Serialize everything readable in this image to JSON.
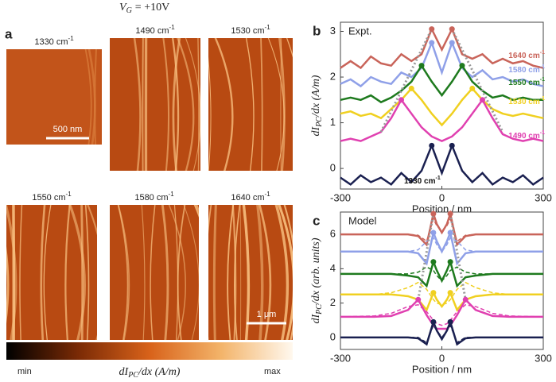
{
  "header": {
    "gate_symbol": "V",
    "gate_subscript": "G",
    "gate_value": "= +10V"
  },
  "panel_a": {
    "panel": "a",
    "images": [
      {
        "label": "1330 cm",
        "label_sup": "-1"
      },
      {
        "label": "1490 cm",
        "label_sup": "-1"
      },
      {
        "label": "1530 cm",
        "label_sup": "-1"
      },
      {
        "label": "1550 cm",
        "label_sup": "-1"
      },
      {
        "label": "1580 cm",
        "label_sup": "-1"
      },
      {
        "label": "1640 cm",
        "label_sup": "-1"
      }
    ],
    "scalebar_small": "500 nm",
    "scalebar_large": "1 μm",
    "colorbar": {
      "min": "min",
      "max": "max",
      "label": "dI",
      "label_sub": "PC",
      "label_rest": "/dx (A/m)"
    }
  },
  "chart_data": [
    {
      "type": "line",
      "panel": "b",
      "legend_text": "Expt.",
      "xlabel": "Position / nm",
      "ylabel": "dI",
      "ylabel_sub": "PC",
      "ylabel_rest": "/dx (A/m)",
      "x": [
        -300,
        -270,
        -240,
        -210,
        -180,
        -150,
        -120,
        -90,
        -60,
        -30,
        0,
        30,
        60,
        90,
        120,
        150,
        180,
        210,
        240,
        270,
        300
      ],
      "xlim": [
        -300,
        300
      ],
      "ylim": [
        -0.45,
        3.2
      ],
      "xticks": [
        -300,
        0,
        300
      ],
      "yticks": [
        0,
        1,
        2,
        3
      ],
      "series": [
        {
          "name": "1640 cm",
          "name_sup": "-1",
          "color": "#c9645a",
          "values": [
            2.2,
            2.35,
            2.2,
            2.45,
            2.3,
            2.25,
            2.5,
            2.35,
            2.5,
            3.05,
            2.6,
            3.05,
            2.5,
            2.4,
            2.5,
            2.3,
            2.4,
            2.3,
            2.35,
            2.25,
            2.2
          ],
          "markers": {
            "x": [
              -30,
              30
            ],
            "y": [
              3.05,
              3.05
            ]
          }
        },
        {
          "name": "1580 cm",
          "name_sup": "-1",
          "color": "#8fa0e8",
          "values": [
            1.85,
            1.95,
            1.8,
            2.0,
            1.9,
            1.85,
            2.1,
            2.0,
            2.2,
            2.75,
            2.1,
            2.75,
            2.2,
            2.0,
            2.15,
            1.95,
            2.0,
            1.9,
            1.95,
            1.85,
            1.8
          ],
          "markers": {
            "x": [
              -30,
              30
            ],
            "y": [
              2.75,
              2.75
            ]
          }
        },
        {
          "name": "1550 cm",
          "name_sup": "-1",
          "color": "#1e7a1e",
          "values": [
            1.5,
            1.55,
            1.5,
            1.6,
            1.45,
            1.55,
            1.7,
            1.9,
            2.25,
            1.9,
            1.6,
            1.9,
            2.25,
            1.9,
            1.7,
            1.55,
            1.6,
            1.5,
            1.55,
            1.5,
            1.5
          ],
          "markers": {
            "x": [
              -60,
              60
            ],
            "y": [
              2.25,
              2.25
            ]
          }
        },
        {
          "name": "1530 cm",
          "name_sup": "-1",
          "color": "#f0d020",
          "values": [
            1.2,
            1.25,
            1.15,
            1.2,
            1.1,
            1.3,
            1.5,
            1.75,
            1.5,
            1.2,
            0.95,
            1.2,
            1.5,
            1.75,
            1.5,
            1.3,
            1.2,
            1.15,
            1.2,
            1.15,
            1.1
          ],
          "markers": {
            "x": [
              -90,
              90
            ],
            "y": [
              1.75,
              1.75
            ]
          }
        },
        {
          "name": "1490 cm",
          "name_sup": "-1",
          "color": "#e040b0",
          "values": [
            0.6,
            0.65,
            0.6,
            0.7,
            0.8,
            1.1,
            1.5,
            1.2,
            0.9,
            0.7,
            0.6,
            0.7,
            0.9,
            1.2,
            1.5,
            1.1,
            0.75,
            0.65,
            0.6,
            0.65,
            0.6
          ],
          "markers": {
            "x": [
              -120,
              120
            ],
            "y": [
              1.5,
              1.5
            ]
          }
        },
        {
          "name": "1330 cm",
          "name_sup": "-1",
          "color": "#1a2050",
          "values": [
            -0.2,
            -0.35,
            -0.15,
            -0.3,
            -0.2,
            -0.35,
            -0.1,
            -0.3,
            -0.05,
            0.5,
            -0.1,
            0.5,
            -0.05,
            -0.3,
            -0.1,
            -0.35,
            -0.2,
            -0.3,
            -0.15,
            -0.35,
            -0.2
          ],
          "markers": {
            "x": [
              -30,
              30
            ],
            "y": [
              0.5,
              0.5
            ]
          }
        }
      ],
      "guides": [
        {
          "x": [
            -180,
            -30
          ],
          "y": [
            0.8,
            3.05
          ]
        },
        {
          "x": [
            30,
            180
          ],
          "y": [
            3.05,
            0.8
          ]
        }
      ]
    },
    {
      "type": "line",
      "panel": "c",
      "legend_text": "Model",
      "xlabel": "Position / nm",
      "ylabel": "dI",
      "ylabel_sub": "PC",
      "ylabel_rest": "/dx (arb. units)",
      "x": [
        -300,
        -200,
        -150,
        -100,
        -70,
        -45,
        -25,
        -15,
        0,
        15,
        25,
        45,
        70,
        100,
        150,
        200,
        300
      ],
      "xlim": [
        -300,
        300
      ],
      "ylim": [
        -0.7,
        7.3
      ],
      "xticks": [
        -300,
        0,
        300
      ],
      "yticks": [
        0,
        2,
        4,
        6
      ],
      "series": [
        {
          "color": "#c9645a",
          "values": [
            6,
            6,
            6,
            6,
            5.9,
            5.4,
            7.2,
            6.6,
            6.1,
            6.6,
            7.2,
            5.4,
            5.9,
            6,
            6,
            6,
            6
          ],
          "markers": {
            "x": [
              -25,
              25
            ],
            "y": [
              7.2,
              7.2
            ]
          }
        },
        {
          "color": "#c9645a",
          "dash": true,
          "values": [
            6,
            6,
            6,
            6,
            5.95,
            5.6,
            6.9,
            6.5,
            6.2,
            6.5,
            6.9,
            5.6,
            5.95,
            6,
            6,
            6,
            6
          ]
        },
        {
          "color": "#8fa0e8",
          "values": [
            5,
            5,
            5,
            5,
            4.9,
            4.3,
            6.1,
            5.6,
            5.0,
            5.6,
            6.1,
            4.3,
            4.9,
            5,
            5,
            5,
            5
          ],
          "markers": {
            "x": [
              -25,
              25
            ],
            "y": [
              6.1,
              6.1
            ]
          }
        },
        {
          "color": "#8fa0e8",
          "dash": true,
          "values": [
            5,
            5,
            5,
            5,
            5.1,
            5.6,
            5.8,
            5.4,
            5.0,
            5.4,
            5.8,
            5.6,
            5.1,
            5,
            5,
            5,
            5
          ]
        },
        {
          "color": "#1e7a1e",
          "values": [
            3.7,
            3.7,
            3.7,
            3.6,
            3.5,
            3.0,
            4.4,
            3.9,
            3.3,
            3.9,
            4.4,
            3.0,
            3.5,
            3.6,
            3.7,
            3.7,
            3.7
          ],
          "markers": {
            "x": [
              -25,
              25
            ],
            "y": [
              4.4,
              4.4
            ]
          }
        },
        {
          "color": "#1e7a1e",
          "dash": true,
          "values": [
            3.7,
            3.7,
            3.7,
            3.7,
            3.8,
            4.1,
            3.9,
            3.6,
            3.3,
            3.6,
            3.9,
            4.1,
            3.8,
            3.7,
            3.7,
            3.7,
            3.7
          ]
        },
        {
          "color": "#f0d020",
          "values": [
            2.5,
            2.5,
            2.5,
            2.4,
            2.2,
            1.6,
            2.6,
            2.2,
            1.8,
            2.2,
            2.6,
            1.6,
            2.2,
            2.4,
            2.5,
            2.5,
            2.5
          ],
          "markers": {
            "x": [
              -25,
              25
            ],
            "y": [
              2.6,
              2.6
            ]
          }
        },
        {
          "color": "#f0d020",
          "dash": true,
          "values": [
            2.5,
            2.5,
            2.6,
            2.9,
            3.2,
            2.8,
            2.2,
            2.0,
            1.9,
            2.0,
            2.2,
            2.8,
            3.2,
            2.9,
            2.6,
            2.5,
            2.5
          ]
        },
        {
          "color": "#e040b0",
          "values": [
            1.2,
            1.2,
            1.25,
            1.6,
            2.2,
            1.3,
            0.7,
            0.5,
            0.5,
            0.5,
            0.7,
            1.3,
            2.2,
            1.6,
            1.25,
            1.2,
            1.2
          ],
          "markers": {
            "x": [
              -70,
              70
            ],
            "y": [
              2.2,
              2.2
            ]
          }
        },
        {
          "color": "#e040b0",
          "dash": true,
          "values": [
            1.2,
            1.25,
            1.4,
            1.8,
            1.9,
            1.5,
            1.0,
            0.8,
            0.7,
            0.8,
            1.0,
            1.5,
            1.9,
            1.8,
            1.4,
            1.25,
            1.2
          ]
        },
        {
          "color": "#1a2050",
          "values": [
            0,
            0,
            0,
            0,
            -0.05,
            -0.4,
            0.9,
            0.4,
            -0.1,
            0.4,
            0.9,
            -0.4,
            -0.05,
            0,
            0,
            0,
            0
          ],
          "markers": {
            "x": [
              -25,
              25
            ],
            "y": [
              0.9,
              0.9
            ]
          }
        },
        {
          "color": "#1a2050",
          "dash": true,
          "values": [
            0,
            0,
            0,
            0,
            0,
            -0.3,
            0.7,
            0.4,
            0,
            0.4,
            0.7,
            -0.3,
            0,
            0,
            0,
            0,
            0
          ]
        }
      ],
      "guides": [
        {
          "x": [
            -70,
            -25
          ],
          "y": [
            2.2,
            7.2
          ]
        },
        {
          "x": [
            25,
            70
          ],
          "y": [
            7.2,
            2.2
          ]
        }
      ]
    }
  ]
}
